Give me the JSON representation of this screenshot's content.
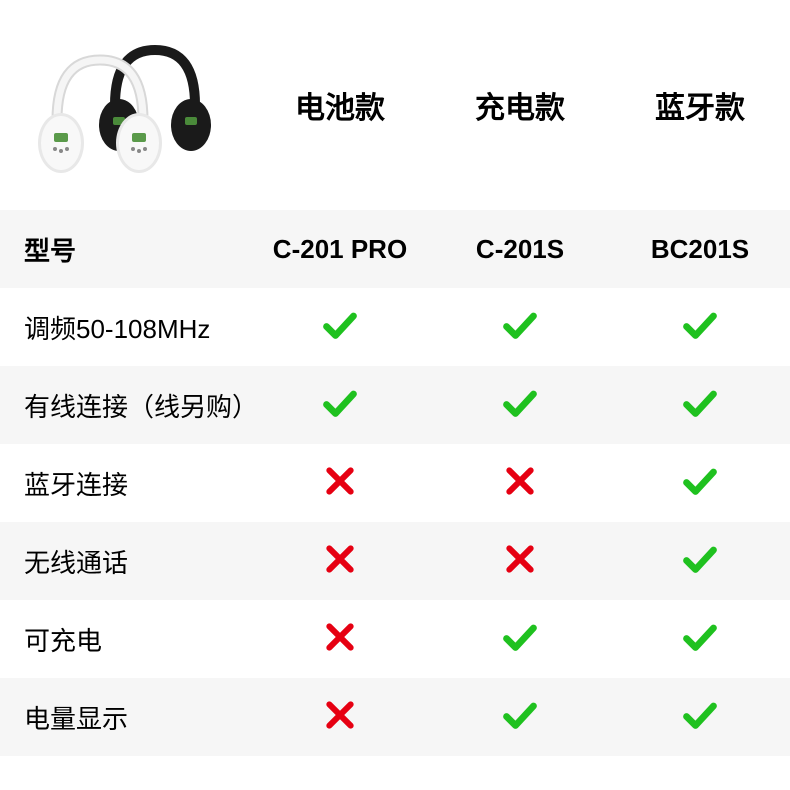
{
  "colors": {
    "check": "#1fc11f",
    "cross": "#e60012",
    "alt_row_bg": "#f6f6f6",
    "text": "#000000"
  },
  "headers": {
    "col1": "电池款",
    "col2": "充电款",
    "col3": "蓝牙款"
  },
  "model_row": {
    "label": "型号",
    "col1": "C-201 PRO",
    "col2": "C-201S",
    "col3": "BC201S"
  },
  "rows": [
    {
      "label": "调频50-108MHz",
      "v": [
        true,
        true,
        true
      ]
    },
    {
      "label": "有线连接（线另购）",
      "v": [
        true,
        true,
        true
      ]
    },
    {
      "label": "蓝牙连接",
      "v": [
        false,
        false,
        true
      ]
    },
    {
      "label": "无线通话",
      "v": [
        false,
        false,
        true
      ]
    },
    {
      "label": "可充电",
      "v": [
        false,
        true,
        true
      ]
    },
    {
      "label": "电量显示",
      "v": [
        false,
        true,
        true
      ]
    }
  ]
}
